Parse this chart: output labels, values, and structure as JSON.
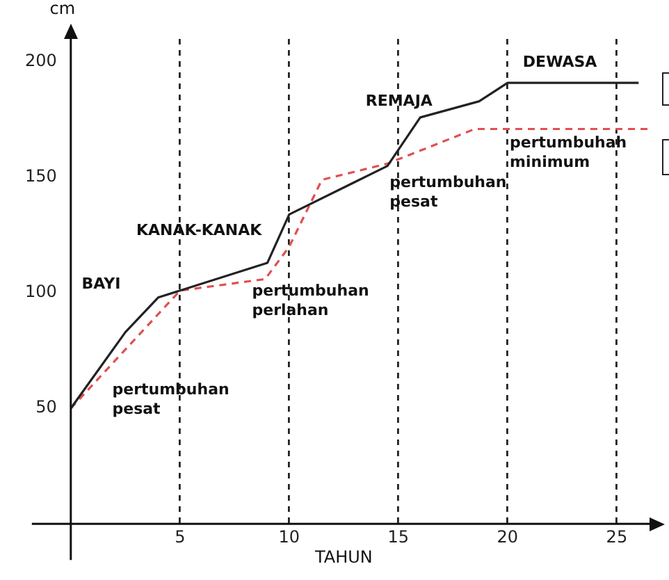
{
  "chart_data": {
    "type": "line",
    "xlabel": "TAHUN",
    "ylabel": "cm",
    "xlim": [
      0,
      26.5
    ],
    "ylim": [
      0,
      210
    ],
    "xticks": [
      5,
      10,
      15,
      20,
      25
    ],
    "yticks": [
      50,
      100,
      150,
      200
    ],
    "grid": "x",
    "legend": false,
    "marker": "none",
    "series": [
      {
        "color": "#222222",
        "line_style": "solid",
        "x": [
          0,
          2.5,
          4,
          9,
          10,
          14.5,
          16,
          18.7,
          20,
          26
        ],
        "values": [
          50,
          83,
          98,
          113,
          134,
          155,
          176,
          183,
          191,
          191
        ]
      },
      {
        "color": "#e05050",
        "line_style": "dashed",
        "x": [
          0,
          5,
          8.9,
          10,
          11.5,
          14.5,
          18.5,
          26.5
        ],
        "values": [
          50,
          101,
          106,
          120,
          149,
          156,
          171,
          171
        ]
      }
    ],
    "annotations": [
      "BAYI",
      "KANAK-KANAK",
      "REMAJA",
      "DEWASA",
      "pertumbuhan pesat",
      "pertumbuhan perlahan",
      "pertumbuhan pesat",
      "pertumbuhah minimum"
    ]
  }
}
